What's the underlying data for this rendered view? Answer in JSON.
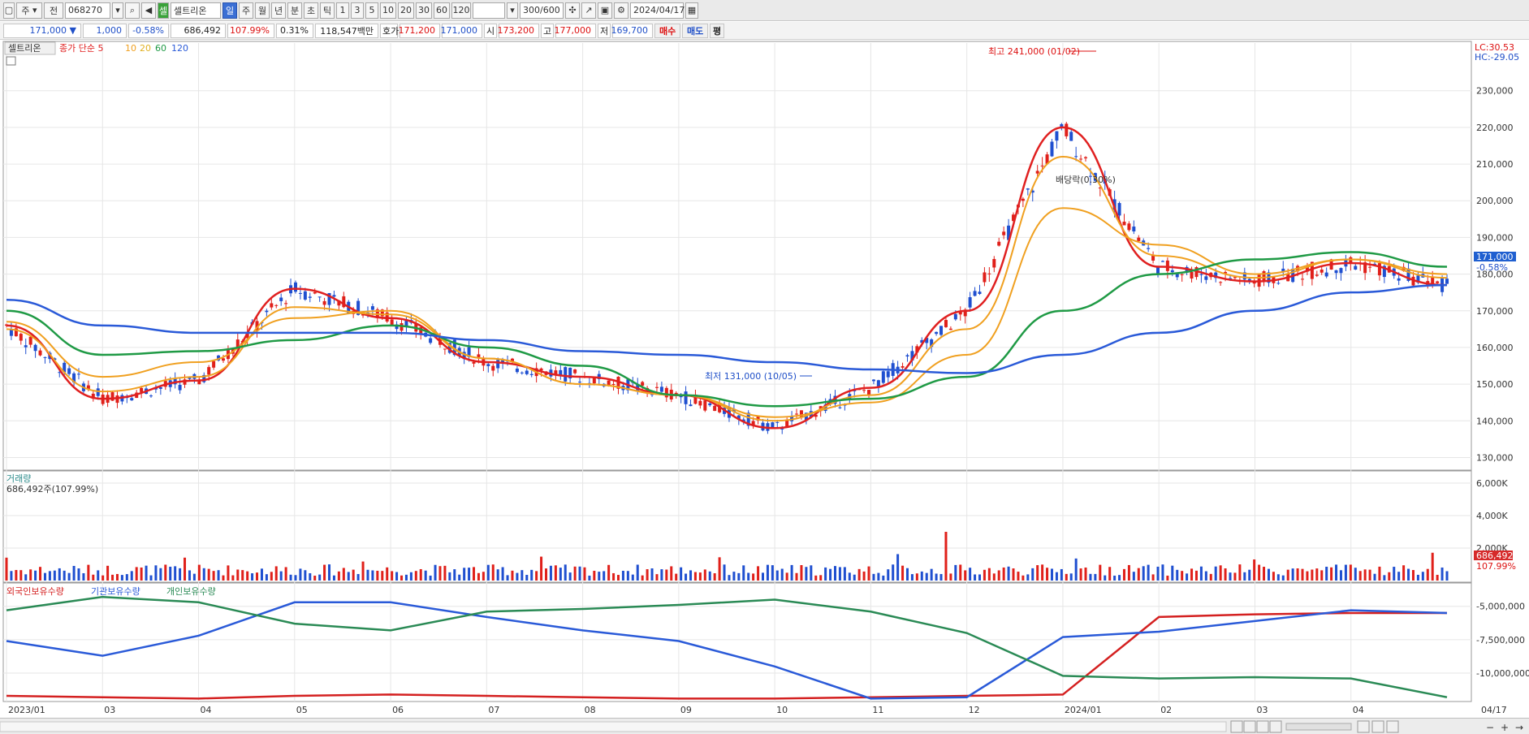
{
  "toolbar": {
    "items": [
      "주",
      "전",
      "068270",
      "",
      "셀",
      "셀트리온",
      "일",
      "주",
      "월",
      "년",
      "분",
      "초",
      "틱",
      "1",
      "3",
      "5",
      "10",
      "20",
      "30",
      "60",
      "120",
      "300/600",
      "2024/04/17"
    ]
  },
  "quote": {
    "price": "171,000 ▼",
    "change": "1,000",
    "change_pct": "-0.58%",
    "volume": "686,492",
    "vol_ratio": "107.99%",
    "turnover": "0.31%",
    "amount": "118,547백만",
    "ask_label": "호가",
    "ask": "171,200",
    "bid": "171,000",
    "open_label": "시",
    "open": "173,200",
    "high_label": "고",
    "high": "177,000",
    "low_label": "저",
    "low": "169,700",
    "buy": "매수",
    "sell": "매도",
    "eval": "평"
  },
  "legend": {
    "stock": "셀트리온",
    "indicator": "종가 단순 5",
    "periods": [
      "10",
      "20",
      "60",
      "120"
    ]
  },
  "annotations": {
    "high_label": "최고 241,000 (01/02)",
    "low_label": "최저 131,000 (10/05)",
    "dividend": "배당락(0.30%)",
    "lc": "LC:30.53",
    "hc": "HC:-29.05",
    "last_price": "171,000",
    "last_pct": "-0.58%"
  },
  "price_axis": [
    "230,000",
    "220,000",
    "210,000",
    "200,000",
    "190,000",
    "180,000",
    "170,000",
    "160,000",
    "150,000",
    "140,000",
    "130,000"
  ],
  "volume_panel": {
    "title": "거래량",
    "value": "686,492주(107.99%)",
    "axis": [
      "6,000K",
      "4,000K",
      "2,000K"
    ],
    "last": "686,492",
    "last_pct": "107.99%"
  },
  "holdings_panel": {
    "foreign": "외국인보유수량",
    "inst": "기관보유수량",
    "indiv": "개인보유수량",
    "axis": [
      "-5,000,000",
      "-7,500,000",
      "-10,000,000"
    ]
  },
  "x_axis": [
    "2023/01",
    "03",
    "04",
    "05",
    "06",
    "07",
    "08",
    "09",
    "10",
    "11",
    "12",
    "2024/01",
    "02",
    "03",
    "04",
    "04/17"
  ],
  "colors": {
    "up": "#e0201a",
    "down": "#1f4fd0",
    "ma5": "#e02020",
    "ma10": "#f0a020",
    "ma20": "#f0a020",
    "ma60": "#1f9a45",
    "ma120": "#2a5ad8",
    "foreign": "#d42020",
    "inst": "#2a5ad8",
    "indiv": "#2a8a55"
  },
  "chart_data": {
    "type": "line",
    "title": "셀트리온",
    "ylim": [
      127000,
      243000
    ],
    "x": [
      "2023/01",
      "03",
      "04",
      "05",
      "06",
      "07",
      "08",
      "09",
      "10",
      "11",
      "12",
      "2024/01",
      "02",
      "03",
      "04",
      "04/17"
    ],
    "series": [
      {
        "name": "종가 단순 5",
        "values": [
          166000,
          146000,
          151000,
          176000,
          168000,
          156000,
          152000,
          147000,
          138000,
          149000,
          170000,
          220000,
          182000,
          178000,
          183000,
          177000
        ]
      },
      {
        "name": "10",
        "values": [
          165000,
          148000,
          152000,
          171000,
          169000,
          157000,
          150000,
          147000,
          140000,
          147000,
          165000,
          212000,
          185000,
          179000,
          184000,
          179000
        ]
      },
      {
        "name": "20",
        "values": [
          167000,
          152000,
          156000,
          168000,
          170000,
          157000,
          150000,
          147000,
          141000,
          145000,
          158000,
          198000,
          188000,
          180000,
          184000,
          180000
        ]
      },
      {
        "name": "60",
        "values": [
          170000,
          158000,
          159000,
          162000,
          166000,
          160000,
          155000,
          147000,
          144000,
          146000,
          152000,
          170000,
          180000,
          184000,
          186000,
          182000
        ]
      },
      {
        "name": "120",
        "values": [
          173000,
          166000,
          164000,
          164000,
          164000,
          162000,
          159000,
          158000,
          156000,
          154000,
          153000,
          158000,
          164000,
          170000,
          175000,
          177000
        ]
      }
    ]
  }
}
